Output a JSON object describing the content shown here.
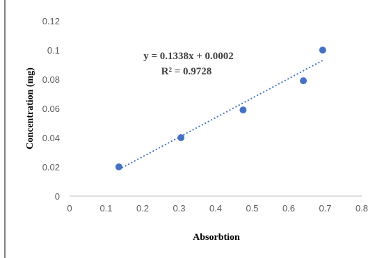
{
  "chart_data": {
    "type": "scatter",
    "title": "",
    "xlabel": "Absorbtion",
    "ylabel": "Concentration  (mg)",
    "xlim": [
      0,
      0.8
    ],
    "ylim": [
      0,
      0.12
    ],
    "x_ticks": [
      "0",
      "0.1",
      "0.2",
      "0.3",
      "0.4",
      "0.5",
      "0.6",
      "0.7",
      "0.8"
    ],
    "y_ticks": [
      "0",
      "0.02",
      "0.04",
      "0.06",
      "0.08",
      "0.1",
      "0.12"
    ],
    "grid": false,
    "legend": "none",
    "series": [
      {
        "points": [
          {
            "x": 0.135,
            "y": 0.02
          },
          {
            "x": 0.305,
            "y": 0.04
          },
          {
            "x": 0.475,
            "y": 0.059
          },
          {
            "x": 0.64,
            "y": 0.079
          },
          {
            "x": 0.693,
            "y": 0.1
          }
        ],
        "color": "#4472C4"
      }
    ],
    "trendline": {
      "type": "linear",
      "slope": 0.1338,
      "intercept": 0.0002,
      "x_range": [
        0.135,
        0.693
      ],
      "style": "dotted",
      "color": "#4472C4"
    },
    "annotations": {
      "equation": "y = 0.1338x + 0.0002",
      "r_squared": "R² = 0.9728"
    },
    "colors": {
      "axis": "#BFBFBF",
      "frame_line": "#000000"
    }
  }
}
